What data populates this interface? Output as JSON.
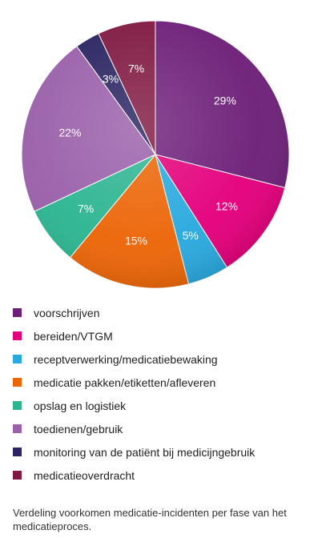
{
  "chart_data": {
    "type": "pie",
    "categories": [
      "voorschrijven",
      "bereiden/VTGM",
      "receptverwerking/medicatiebewaking",
      "medicatie pakken/etiketten/afleveren",
      "opslag en logistiek",
      "toedienen/gebruik",
      "monitoring van de patiënt bij medicijngebruik",
      "medicatieoverdracht"
    ],
    "values": [
      29,
      12,
      5,
      15,
      7,
      22,
      3,
      7
    ],
    "data_labels": [
      "29%",
      "12%",
      "5%",
      "15%",
      "7%",
      "22%",
      "3%",
      "7%"
    ],
    "colors": [
      "#6e2079",
      "#e4007c",
      "#2aa9de",
      "#ec6608",
      "#2db591",
      "#9a60aa",
      "#2a2462",
      "#801942"
    ],
    "start_angle_deg": 0,
    "direction": "clockwise",
    "legend_position": "bottom"
  },
  "caption": "Verdeling voorkomen medicatie-incidenten per fase van het medicatieproces."
}
